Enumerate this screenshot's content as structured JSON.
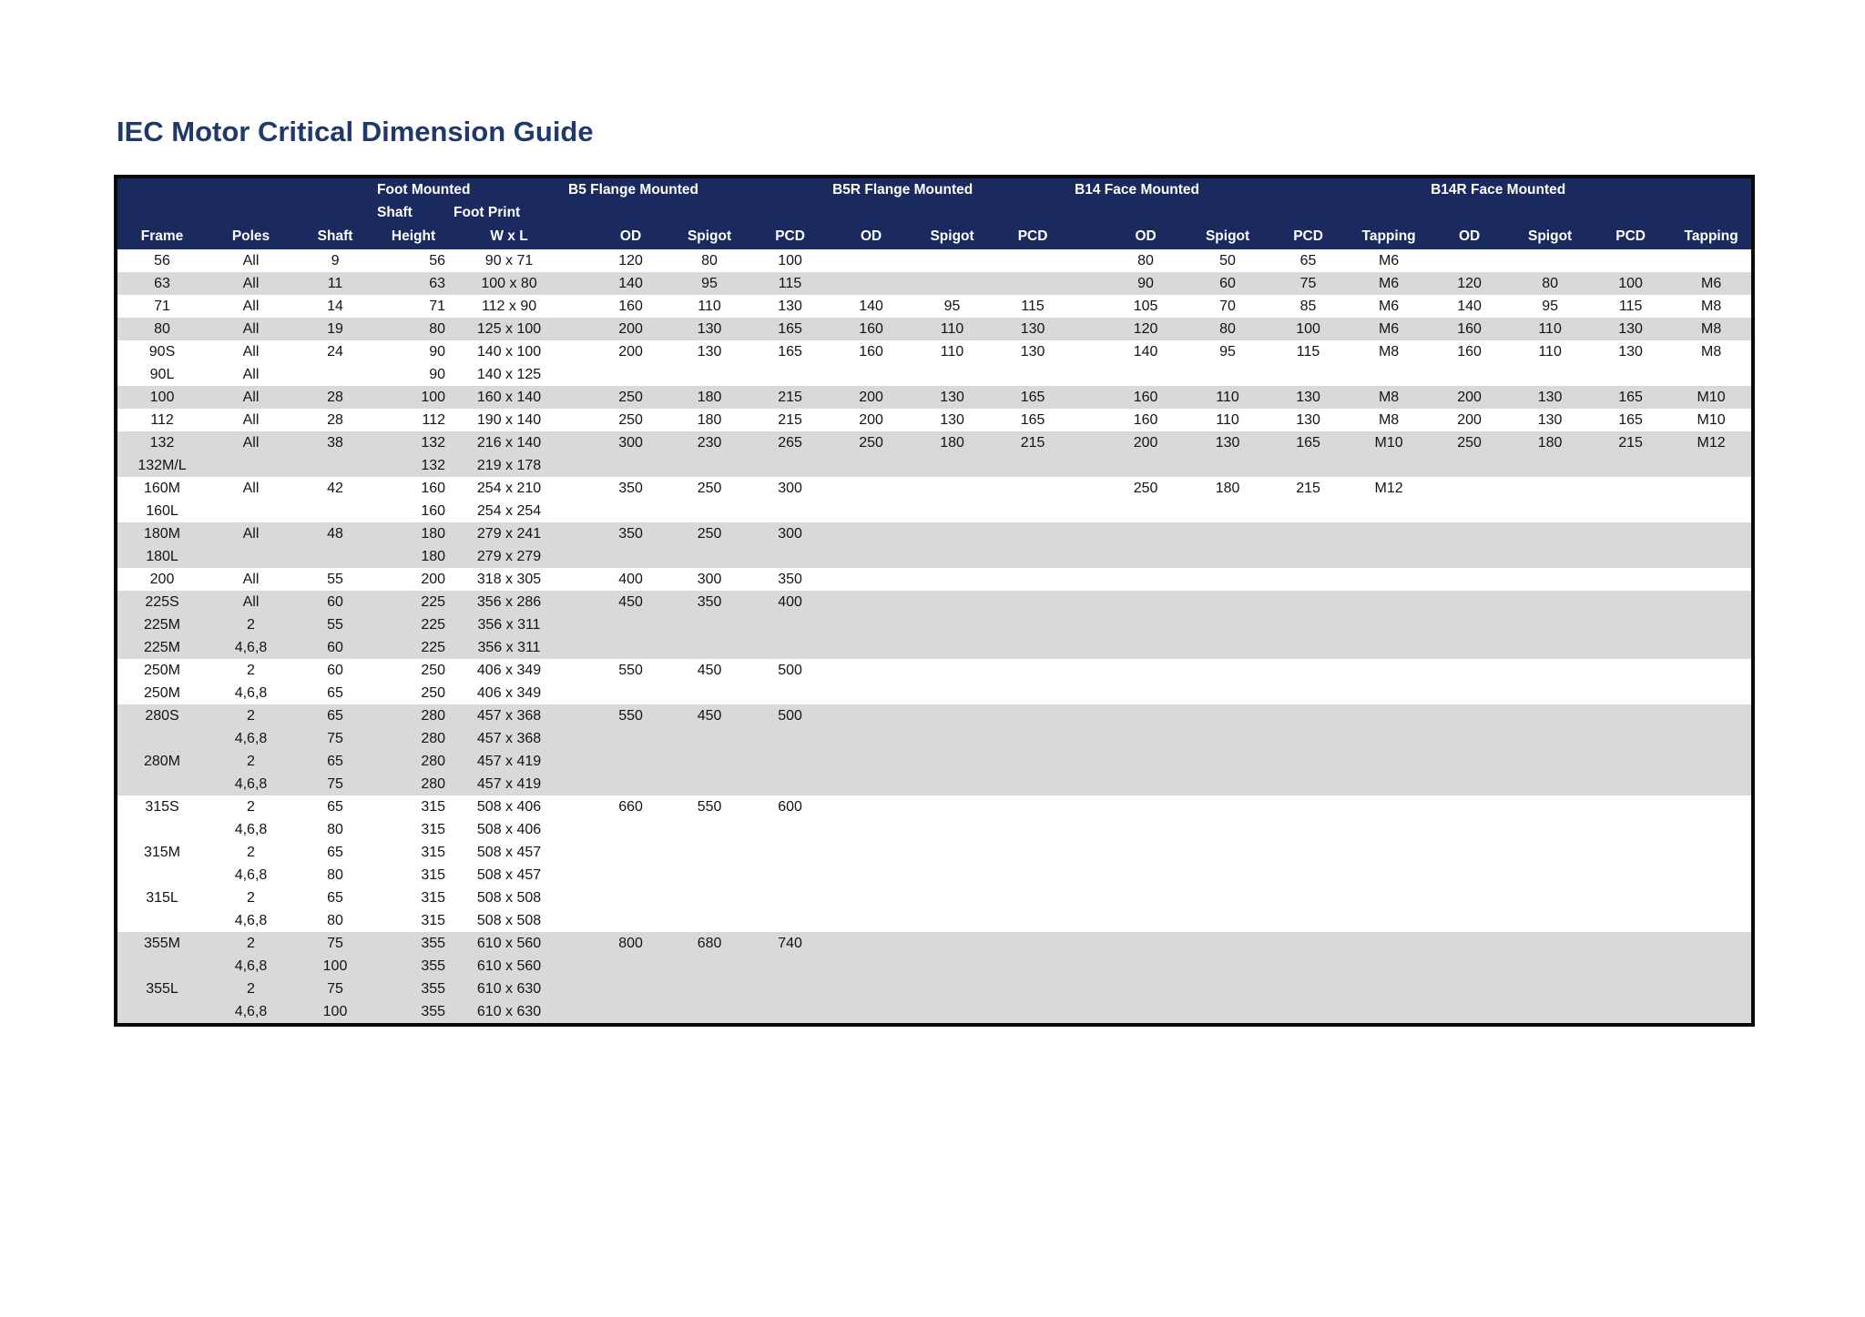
{
  "page": {
    "title": "IEC Motor Critical Dimension Guide"
  },
  "colors": {
    "title_blue": "#20386b",
    "header_navy": "#1b2a5e",
    "stripe_gray": "#d9d9d9",
    "border_black": "#0a0a0a",
    "row_white": "#ffffff",
    "body_text": "#141414",
    "header_text": "#ffffff"
  },
  "table": {
    "group_headers": [
      {
        "label": "",
        "span": 3
      },
      {
        "label": "Foot Mounted",
        "span": 2
      },
      {
        "label": "B5 Flange Mounted",
        "span": 4
      },
      {
        "label": "B5R Flange Mounted",
        "span": 3
      },
      {
        "label": "B14 Face Mounted",
        "span": 5
      },
      {
        "label": "B14R Face Mounted",
        "span": 4
      }
    ],
    "sub_headers": [
      {
        "label": "",
        "span": 3
      },
      {
        "label": "Shaft",
        "span": 1
      },
      {
        "label": "Foot Print",
        "span": 1
      },
      {
        "label": "",
        "span": 16
      }
    ],
    "columns": [
      "Frame",
      "Poles",
      "Shaft",
      "Height",
      "W x L",
      "",
      "OD",
      "Spigot",
      "PCD",
      "OD",
      "Spigot",
      "PCD",
      "",
      "OD",
      "Spigot",
      "PCD",
      "Tapping",
      "OD",
      "Spigot",
      "PCD",
      "Tapping"
    ],
    "rows": [
      {
        "shaded": false,
        "cells": [
          "56",
          "All",
          "9",
          "56",
          "90 x 71",
          "",
          "120",
          "80",
          "100",
          "",
          "",
          "",
          "",
          "80",
          "50",
          "65",
          "M6",
          "",
          "",
          "",
          ""
        ]
      },
      {
        "shaded": true,
        "cells": [
          "63",
          "All",
          "11",
          "63",
          "100 x 80",
          "",
          "140",
          "95",
          "115",
          "",
          "",
          "",
          "",
          "90",
          "60",
          "75",
          "M6",
          "120",
          "80",
          "100",
          "M6"
        ]
      },
      {
        "shaded": false,
        "cells": [
          "71",
          "All",
          "14",
          "71",
          "112 x 90",
          "",
          "160",
          "110",
          "130",
          "140",
          "95",
          "115",
          "",
          "105",
          "70",
          "85",
          "M6",
          "140",
          "95",
          "115",
          "M8"
        ]
      },
      {
        "shaded": true,
        "cells": [
          "80",
          "All",
          "19",
          "80",
          "125 x 100",
          "",
          "200",
          "130",
          "165",
          "160",
          "110",
          "130",
          "",
          "120",
          "80",
          "100",
          "M6",
          "160",
          "110",
          "130",
          "M8"
        ]
      },
      {
        "shaded": false,
        "cells": [
          "90S",
          "All",
          "24",
          "90",
          "140 x 100",
          "",
          "200",
          "130",
          "165",
          "160",
          "110",
          "130",
          "",
          "140",
          "95",
          "115",
          "M8",
          "160",
          "110",
          "130",
          "M8"
        ]
      },
      {
        "shaded": false,
        "cells": [
          "90L",
          "All",
          "",
          "90",
          "140 x 125",
          "",
          "",
          "",
          "",
          "",
          "",
          "",
          "",
          "",
          "",
          "",
          "",
          "",
          "",
          "",
          ""
        ]
      },
      {
        "shaded": true,
        "cells": [
          "100",
          "All",
          "28",
          "100",
          "160 x 140",
          "",
          "250",
          "180",
          "215",
          "200",
          "130",
          "165",
          "",
          "160",
          "110",
          "130",
          "M8",
          "200",
          "130",
          "165",
          "M10"
        ]
      },
      {
        "shaded": false,
        "cells": [
          "112",
          "All",
          "28",
          "112",
          "190 x 140",
          "",
          "250",
          "180",
          "215",
          "200",
          "130",
          "165",
          "",
          "160",
          "110",
          "130",
          "M8",
          "200",
          "130",
          "165",
          "M10"
        ]
      },
      {
        "shaded": true,
        "cells": [
          "132",
          "All",
          "38",
          "132",
          "216 x 140",
          "",
          "300",
          "230",
          "265",
          "250",
          "180",
          "215",
          "",
          "200",
          "130",
          "165",
          "M10",
          "250",
          "180",
          "215",
          "M12"
        ]
      },
      {
        "shaded": true,
        "cells": [
          "132M/L",
          "",
          "",
          "132",
          "219 x 178",
          "",
          "",
          "",
          "",
          "",
          "",
          "",
          "",
          "",
          "",
          "",
          "",
          "",
          "",
          "",
          ""
        ]
      },
      {
        "shaded": false,
        "cells": [
          "160M",
          "All",
          "42",
          "160",
          "254 x 210",
          "",
          "350",
          "250",
          "300",
          "",
          "",
          "",
          "",
          "250",
          "180",
          "215",
          "M12",
          "",
          "",
          "",
          ""
        ]
      },
      {
        "shaded": false,
        "cells": [
          "160L",
          "",
          "",
          "160",
          "254 x 254",
          "",
          "",
          "",
          "",
          "",
          "",
          "",
          "",
          "",
          "",
          "",
          "",
          "",
          "",
          "",
          ""
        ]
      },
      {
        "shaded": true,
        "cells": [
          "180M",
          "All",
          "48",
          "180",
          "279 x 241",
          "",
          "350",
          "250",
          "300",
          "",
          "",
          "",
          "",
          "",
          "",
          "",
          "",
          "",
          "",
          "",
          ""
        ]
      },
      {
        "shaded": true,
        "cells": [
          "180L",
          "",
          "",
          "180",
          "279 x 279",
          "",
          "",
          "",
          "",
          "",
          "",
          "",
          "",
          "",
          "",
          "",
          "",
          "",
          "",
          "",
          ""
        ]
      },
      {
        "shaded": false,
        "cells": [
          "200",
          "All",
          "55",
          "200",
          "318 x 305",
          "",
          "400",
          "300",
          "350",
          "",
          "",
          "",
          "",
          "",
          "",
          "",
          "",
          "",
          "",
          "",
          ""
        ]
      },
      {
        "shaded": true,
        "cells": [
          "225S",
          "All",
          "60",
          "225",
          "356 x 286",
          "",
          "450",
          "350",
          "400",
          "",
          "",
          "",
          "",
          "",
          "",
          "",
          "",
          "",
          "",
          "",
          ""
        ]
      },
      {
        "shaded": true,
        "cells": [
          "225M",
          "2",
          "55",
          "225",
          "356 x 311",
          "",
          "",
          "",
          "",
          "",
          "",
          "",
          "",
          "",
          "",
          "",
          "",
          "",
          "",
          "",
          ""
        ]
      },
      {
        "shaded": true,
        "cells": [
          "225M",
          "4,6,8",
          "60",
          "225",
          "356 x 311",
          "",
          "",
          "",
          "",
          "",
          "",
          "",
          "",
          "",
          "",
          "",
          "",
          "",
          "",
          "",
          ""
        ]
      },
      {
        "shaded": false,
        "cells": [
          "250M",
          "2",
          "60",
          "250",
          "406 x 349",
          "",
          "550",
          "450",
          "500",
          "",
          "",
          "",
          "",
          "",
          "",
          "",
          "",
          "",
          "",
          "",
          ""
        ]
      },
      {
        "shaded": false,
        "cells": [
          "250M",
          "4,6,8",
          "65",
          "250",
          "406 x 349",
          "",
          "",
          "",
          "",
          "",
          "",
          "",
          "",
          "",
          "",
          "",
          "",
          "",
          "",
          "",
          ""
        ]
      },
      {
        "shaded": true,
        "cells": [
          "280S",
          "2",
          "65",
          "280",
          "457 x 368",
          "",
          "550",
          "450",
          "500",
          "",
          "",
          "",
          "",
          "",
          "",
          "",
          "",
          "",
          "",
          "",
          ""
        ]
      },
      {
        "shaded": true,
        "cells": [
          "",
          "4,6,8",
          "75",
          "280",
          "457 x 368",
          "",
          "",
          "",
          "",
          "",
          "",
          "",
          "",
          "",
          "",
          "",
          "",
          "",
          "",
          "",
          ""
        ]
      },
      {
        "shaded": true,
        "cells": [
          "280M",
          "2",
          "65",
          "280",
          "457 x 419",
          "",
          "",
          "",
          "",
          "",
          "",
          "",
          "",
          "",
          "",
          "",
          "",
          "",
          "",
          "",
          ""
        ]
      },
      {
        "shaded": true,
        "cells": [
          "",
          "4,6,8",
          "75",
          "280",
          "457 x 419",
          "",
          "",
          "",
          "",
          "",
          "",
          "",
          "",
          "",
          "",
          "",
          "",
          "",
          "",
          "",
          ""
        ]
      },
      {
        "shaded": false,
        "cells": [
          "315S",
          "2",
          "65",
          "315",
          "508 x 406",
          "",
          "660",
          "550",
          "600",
          "",
          "",
          "",
          "",
          "",
          "",
          "",
          "",
          "",
          "",
          "",
          ""
        ]
      },
      {
        "shaded": false,
        "cells": [
          "",
          "4,6,8",
          "80",
          "315",
          "508 x 406",
          "",
          "",
          "",
          "",
          "",
          "",
          "",
          "",
          "",
          "",
          "",
          "",
          "",
          "",
          "",
          ""
        ]
      },
      {
        "shaded": false,
        "cells": [
          "315M",
          "2",
          "65",
          "315",
          "508 x 457",
          "",
          "",
          "",
          "",
          "",
          "",
          "",
          "",
          "",
          "",
          "",
          "",
          "",
          "",
          "",
          ""
        ]
      },
      {
        "shaded": false,
        "cells": [
          "",
          "4,6,8",
          "80",
          "315",
          "508 x 457",
          "",
          "",
          "",
          "",
          "",
          "",
          "",
          "",
          "",
          "",
          "",
          "",
          "",
          "",
          "",
          ""
        ]
      },
      {
        "shaded": false,
        "cells": [
          "315L",
          "2",
          "65",
          "315",
          "508 x 508",
          "",
          "",
          "",
          "",
          "",
          "",
          "",
          "",
          "",
          "",
          "",
          "",
          "",
          "",
          "",
          ""
        ]
      },
      {
        "shaded": false,
        "cells": [
          "",
          "4,6,8",
          "80",
          "315",
          "508 x 508",
          "",
          "",
          "",
          "",
          "",
          "",
          "",
          "",
          "",
          "",
          "",
          "",
          "",
          "",
          "",
          ""
        ]
      },
      {
        "shaded": true,
        "cells": [
          "355M",
          "2",
          "75",
          "355",
          "610 x 560",
          "",
          "800",
          "680",
          "740",
          "",
          "",
          "",
          "",
          "",
          "",
          "",
          "",
          "",
          "",
          "",
          ""
        ]
      },
      {
        "shaded": true,
        "cells": [
          "",
          "4,6,8",
          "100",
          "355",
          "610 x 560",
          "",
          "",
          "",
          "",
          "",
          "",
          "",
          "",
          "",
          "",
          "",
          "",
          "",
          "",
          "",
          ""
        ]
      },
      {
        "shaded": true,
        "cells": [
          "355L",
          "2",
          "75",
          "355",
          "610 x 630",
          "",
          "",
          "",
          "",
          "",
          "",
          "",
          "",
          "",
          "",
          "",
          "",
          "",
          "",
          "",
          ""
        ]
      },
      {
        "shaded": true,
        "cells": [
          "",
          "4,6,8",
          "100",
          "355",
          "610 x 630",
          "",
          "",
          "",
          "",
          "",
          "",
          "",
          "",
          "",
          "",
          "",
          "",
          "",
          "",
          "",
          ""
        ]
      }
    ]
  }
}
